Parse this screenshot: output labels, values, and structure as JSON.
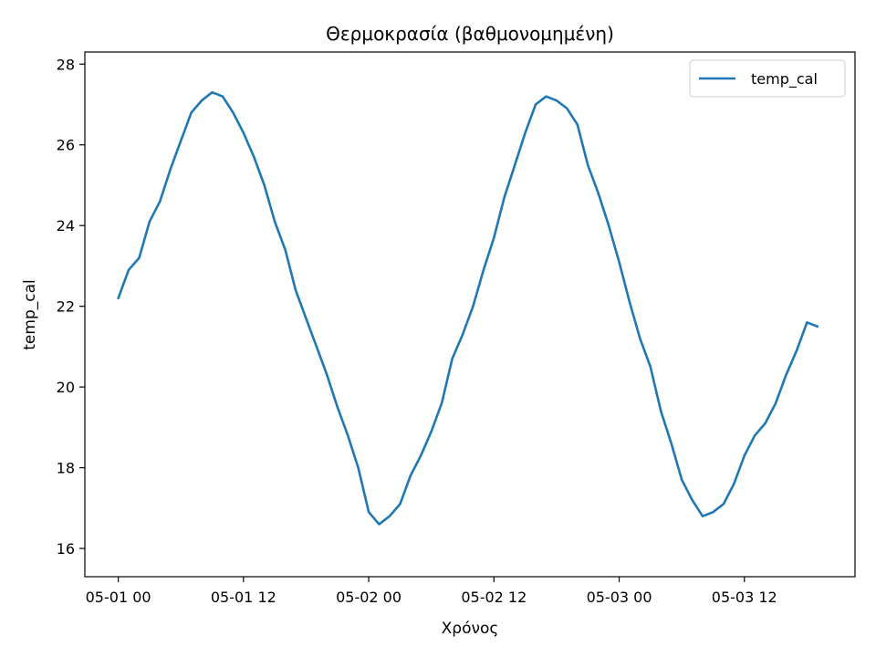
{
  "chart_data": {
    "type": "line",
    "title": "Θερμοκρασία (βαθμονομημένη)",
    "xlabel": "Χρόνος",
    "ylabel": "temp_cal",
    "x_ticks": [
      "05-01 00",
      "05-01 12",
      "05-02 00",
      "05-02 12",
      "05-03 00",
      "05-03 12"
    ],
    "x_tick_hours": [
      0,
      12,
      24,
      36,
      48,
      60
    ],
    "y_ticks": [
      16,
      18,
      20,
      22,
      24,
      26,
      28
    ],
    "xlim_hours": [
      -3.2,
      70.6
    ],
    "ylim": [
      15.3,
      28.3
    ],
    "grid": false,
    "legend_position": "top-right",
    "series": [
      {
        "name": "temp_cal",
        "color": "#1f77b4",
        "x_hours": [
          0,
          1,
          2,
          3,
          4,
          5,
          6,
          7,
          8,
          9,
          10,
          11,
          12,
          13,
          14,
          15,
          16,
          17,
          18,
          19,
          20,
          21,
          22,
          23,
          24,
          25,
          26,
          27,
          28,
          29,
          30,
          31,
          32,
          33,
          34,
          35,
          36,
          37,
          38,
          39,
          40,
          41,
          42,
          43,
          44,
          45,
          46,
          47,
          48,
          49,
          50,
          51,
          52,
          53,
          54,
          55,
          56,
          57,
          58,
          59,
          60,
          61,
          62,
          63,
          64,
          65,
          66,
          67
        ],
        "values": [
          22.2,
          22.9,
          23.2,
          24.1,
          24.6,
          25.4,
          26.1,
          26.8,
          27.1,
          27.3,
          27.2,
          26.8,
          26.3,
          25.7,
          25.0,
          24.1,
          23.4,
          22.4,
          21.7,
          21.0,
          20.3,
          19.5,
          18.8,
          18.0,
          16.9,
          16.6,
          16.8,
          17.1,
          17.8,
          18.3,
          18.9,
          19.6,
          20.7,
          21.3,
          22.0,
          22.9,
          23.7,
          24.7,
          25.5,
          26.3,
          27.0,
          27.2,
          27.1,
          26.9,
          26.5,
          25.5,
          24.8,
          24.0,
          23.1,
          22.1,
          21.2,
          20.5,
          19.4,
          18.6,
          17.7,
          17.2,
          16.8,
          16.9,
          17.1,
          17.6,
          18.3,
          18.8,
          19.1,
          19.6,
          20.3,
          20.9,
          21.6,
          21.5
        ],
        "min": 15.85,
        "max": 27.65
      }
    ]
  }
}
